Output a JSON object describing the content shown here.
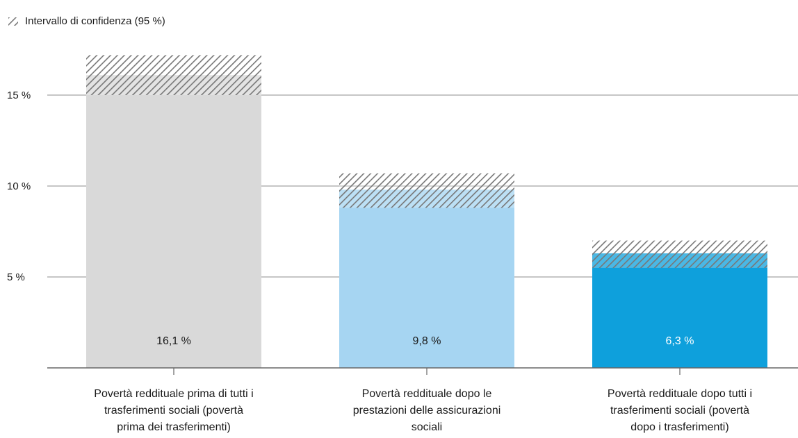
{
  "legend": {
    "label": "Intervallo di confidenza (95 %)",
    "swatch_icon": "hatched-square-icon"
  },
  "chart_data": {
    "type": "bar",
    "title": "",
    "xlabel": "",
    "ylabel": "",
    "ylim": [
      0,
      18
    ],
    "yticks": [
      5,
      10,
      15
    ],
    "ytick_labels": [
      "5 %",
      "10 %",
      "15 %"
    ],
    "grid": true,
    "categories": [
      "Povertà reddituale prima di tutti i trasferimenti sociali (povertà prima dei trasferimenti)",
      "Povertà reddituale dopo le prestazioni delle assicurazioni sociali",
      "Povertà reddituale dopo tutti i trasferimenti sociali (povertà dopo i trasferimenti)"
    ],
    "category_lines": [
      [
        "Povertà reddituale prima di tutti i",
        "trasferimenti sociali (povertà",
        "prima dei trasferimenti)"
      ],
      [
        "Povertà reddituale dopo le",
        "prestazioni delle assicurazioni",
        "sociali"
      ],
      [
        "Povertà reddituale dopo tutti i",
        "trasferimenti sociali (povertà",
        "dopo i trasferimenti)"
      ]
    ],
    "values": [
      16.1,
      9.8,
      6.3
    ],
    "value_labels": [
      "16,1 %",
      "9,8 %",
      "6,3 %"
    ],
    "ci_low": [
      15.0,
      8.8,
      5.5
    ],
    "ci_high": [
      17.2,
      10.7,
      7.0
    ],
    "colors": [
      "#d9d9d9",
      "#a6d5f2",
      "#0ea0dc"
    ],
    "value_label_colors": [
      "#1a1a1a",
      "#1a1a1a",
      "#ffffff"
    ]
  }
}
